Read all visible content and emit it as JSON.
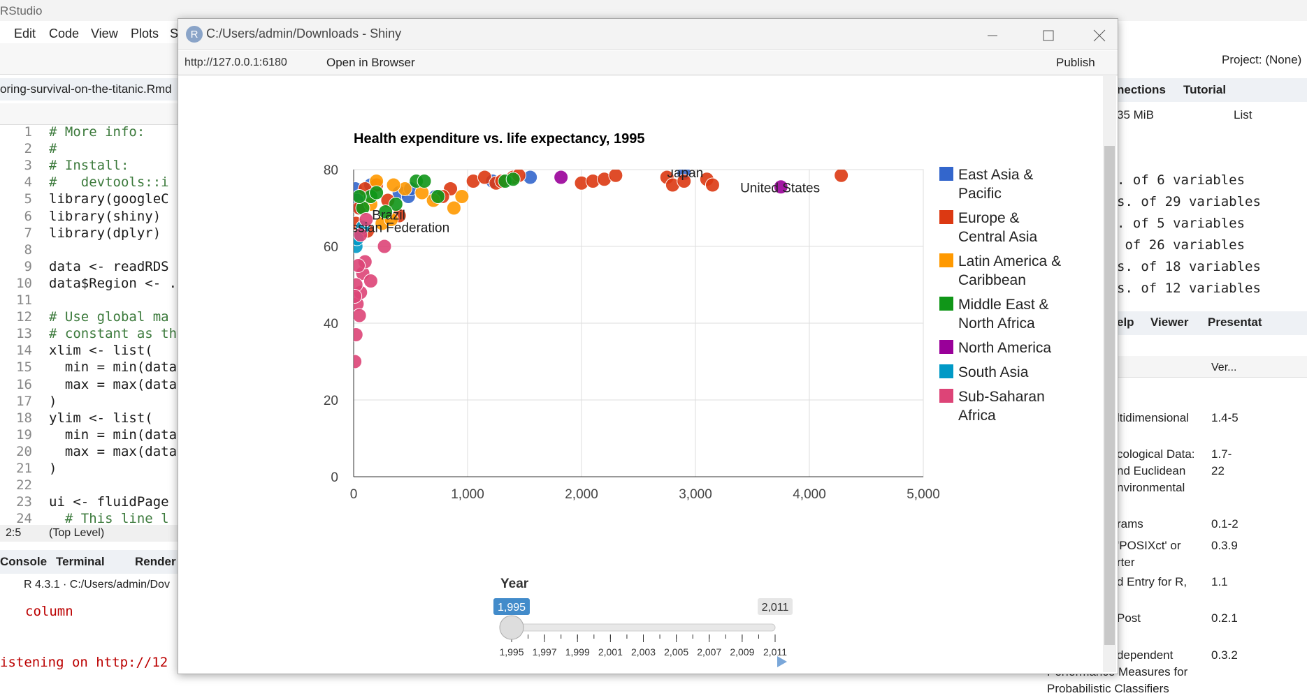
{
  "rstudio": {
    "title": "RStudio",
    "menu": [
      "Edit",
      "Code",
      "View",
      "Plots",
      "S"
    ],
    "file_tab": "oring-survival-on-the-titanic.Rmd",
    "line_numbers": [
      1,
      2,
      3,
      4,
      5,
      6,
      7,
      8,
      9,
      10,
      11,
      12,
      13,
      14,
      15,
      16,
      17,
      18,
      19,
      20,
      21,
      22,
      23,
      24
    ],
    "code_lines": [
      {
        "line": 1,
        "text": "# More info:"
      },
      {
        "line": 2,
        "text": "#"
      },
      {
        "line": 3,
        "text": "# Install:"
      },
      {
        "line": 4,
        "text": "#   devtools::i"
      },
      {
        "line": 5,
        "text": "library(googleC"
      },
      {
        "line": 6,
        "text": "library(shiny)"
      },
      {
        "line": 7,
        "text": "library(dplyr)"
      },
      {
        "line": 9,
        "text": "data <- readRDS"
      },
      {
        "line": 10,
        "text": "data$Region <- ."
      },
      {
        "line": 12,
        "text": "# Use global ma"
      },
      {
        "line": 13,
        "text": "# constant as th"
      },
      {
        "line": 14,
        "text": "xlim <- list("
      },
      {
        "line": 15,
        "text": "  min = min(data"
      },
      {
        "line": 16,
        "text": "  max = max(data"
      },
      {
        "line": 17,
        "text": ")"
      },
      {
        "line": 18,
        "text": "ylim <- list("
      },
      {
        "line": 19,
        "text": "  min = min(data"
      },
      {
        "line": 20,
        "text": "  max = max(data"
      },
      {
        "line": 21,
        "text": ")"
      },
      {
        "line": 23,
        "text": "ui <- fluidPage"
      },
      {
        "line": 24,
        "text": "  # This line l"
      }
    ],
    "cursor": "2:5",
    "scope": "(Top Level)",
    "console_tabs": [
      "Console",
      "Terminal",
      "Render"
    ],
    "console_path": "R 4.3.1 · C:/Users/admin/Dov",
    "console_lines": [
      "column",
      "istening on http://12"
    ],
    "project": "Project: (None)",
    "tabs_top": [
      "nections",
      "Tutorial"
    ],
    "memory": "35 MiB",
    "list": "List",
    "env_rows": [
      ". of 6 variables",
      "s. of 29 variables",
      ". of 5 variables",
      " of 26 variables",
      "s. of 18 variables",
      "s. of 12 variables"
    ],
    "tabs_bottom": [
      "elp",
      "Viewer",
      "Presentat"
    ],
    "version_header": "Ver...",
    "packages": [
      {
        "desc": [
          "ltidimensional"
        ],
        "ver": [
          "1.4-5"
        ]
      },
      {
        "desc": [
          "cological Data:",
          "nd Euclidean",
          "nvironmental"
        ],
        "ver": [
          "1.7-",
          "22"
        ]
      },
      {
        "desc": [
          "rams"
        ],
        "ver": [
          "0.1-2"
        ]
      },
      {
        "desc": [
          "'POSIXct' or",
          "rter"
        ],
        "ver": [
          "0.3.9"
        ]
      },
      {
        "desc": [
          "d Entry for R,"
        ],
        "ver": [
          "1.1"
        ]
      },
      {
        "desc": [
          "Post"
        ],
        "ver": [
          "0.2.1"
        ]
      },
      {
        "desc": [
          "dependent",
          "Performance Measures for",
          "Probabilistic Classifiers"
        ],
        "ver": [
          "0.3.2"
        ]
      }
    ]
  },
  "shiny": {
    "window_title": "C:/Users/admin/Downloads - Shiny",
    "url": "http://127.0.0.1:6180",
    "open_browser": "Open in Browser",
    "publish": "Publish"
  },
  "chart_data": {
    "type": "scatter",
    "title": "Health expenditure vs. life expectancy, 1995",
    "xlim": [
      0,
      5000
    ],
    "xticks": [
      0,
      {
        "value": 1000,
        "label": "1,000"
      },
      {
        "value": 2000,
        "label": "2,000"
      },
      {
        "value": 3000,
        "label": "3,000"
      },
      {
        "value": 4000,
        "label": "4,000"
      },
      {
        "value": 5000,
        "label": "5,000"
      }
    ],
    "ylim": [
      0,
      80
    ],
    "yticks": [
      0,
      20,
      40,
      60,
      80
    ],
    "grid": true,
    "legend": "right",
    "series": [
      {
        "name": "East Asia & Pacific",
        "color": "#3366cc",
        "x": [
          15,
          30,
          60,
          400,
          480,
          500,
          1550,
          1220,
          2900,
          720,
          150
        ],
        "values": [
          75,
          72,
          70,
          74,
          73,
          75,
          78,
          77,
          79,
          73,
          76
        ]
      },
      {
        "name": "Europe & Central Asia",
        "color": "#dc3912",
        "x": [
          1050,
          1150,
          1250,
          1300,
          1400,
          1450,
          2000,
          2100,
          2200,
          2300,
          2750,
          2800,
          2900,
          3100,
          3150,
          4280,
          850,
          780,
          400,
          300,
          200,
          100,
          50,
          20,
          120
        ],
        "values": [
          77,
          78,
          76.5,
          77,
          78,
          78.5,
          76.5,
          77,
          77.5,
          78.5,
          78,
          76,
          77,
          77.5,
          76,
          78.5,
          75,
          73,
          68,
          72,
          76,
          75,
          70,
          66,
          64
        ]
      },
      {
        "name": "Latin America & Caribbean",
        "color": "#ff9900",
        "x": [
          250,
          330,
          700,
          950,
          600,
          450,
          200,
          350,
          880,
          150
        ],
        "values": [
          66,
          67,
          72,
          73,
          74,
          75,
          77,
          76,
          70,
          71
        ]
      },
      {
        "name": "Middle East & North Africa",
        "color": "#109618",
        "x": [
          80,
          150,
          200,
          370,
          550,
          620,
          740,
          1330,
          1400,
          50,
          280
        ],
        "values": [
          70,
          73,
          74,
          71,
          77,
          77,
          73,
          77,
          77.5,
          73,
          69
        ]
      },
      {
        "name": "North America",
        "color": "#990099",
        "x": [
          3750,
          1820
        ],
        "values": [
          75.5,
          78
        ]
      },
      {
        "name": "South Asia",
        "color": "#0099c6",
        "x": [
          20,
          80,
          30
        ],
        "values": [
          60,
          65,
          62
        ]
      },
      {
        "name": "Sub-Saharan Africa",
        "color": "#dd4477",
        "x": [
          10,
          20,
          30,
          50,
          60,
          80,
          100,
          20,
          40,
          270,
          60,
          150,
          10,
          110
        ],
        "values": [
          30,
          37,
          45,
          42,
          48,
          53,
          56,
          50,
          55,
          60,
          63,
          51,
          47,
          67
        ]
      }
    ],
    "annotations": [
      {
        "text": "United States",
        "x": 3743,
        "y": 75.4
      },
      {
        "text": "Japan",
        "x": 2910,
        "y": 79.3
      },
      {
        "text": "Brazil",
        "x": 307,
        "y": 68.3
      },
      {
        "text": "Russian Federation",
        "x": 336,
        "y": 65
      }
    ]
  },
  "slider": {
    "label": "Year",
    "range": [
      1995,
      2011
    ],
    "value": {
      "value": 1995,
      "label": "1,995"
    },
    "max": {
      "value": 2011,
      "label": "2,011"
    },
    "ticks": [
      {
        "value": 1995,
        "label": "1,995"
      },
      {
        "value": 1997,
        "label": "1,997"
      },
      {
        "value": 1999,
        "label": "1,999"
      },
      {
        "value": 2001,
        "label": "2,001"
      },
      {
        "value": 2003,
        "label": "2,003"
      },
      {
        "value": 2005,
        "label": "2,005"
      },
      {
        "value": 2007,
        "label": "2,007"
      },
      {
        "value": 2009,
        "label": "2,009"
      },
      {
        "value": 2011,
        "label": "2,011"
      }
    ]
  }
}
